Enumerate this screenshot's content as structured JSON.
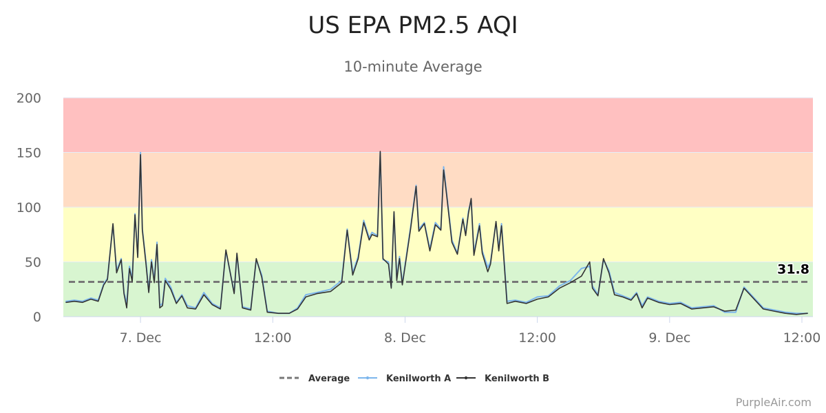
{
  "chart_data": {
    "type": "line",
    "title": "US EPA PM2.5 AQI",
    "subtitle": "10-minute Average",
    "ylim": [
      0,
      200
    ],
    "y_ticks": [
      "0",
      "50",
      "100",
      "150",
      "200"
    ],
    "x_ticks": [
      {
        "label": "7. Dec",
        "x": "2021-12-07T00:00"
      },
      {
        "label": "12:00",
        "x": "2021-12-07T12:00"
      },
      {
        "label": "8. Dec",
        "x": "2021-12-08T00:00"
      },
      {
        "label": "12:00",
        "x": "2021-12-08T12:00"
      },
      {
        "label": "9. Dec",
        "x": "2021-12-09T00:00"
      },
      {
        "label": "12:00",
        "x": "2021-12-09T12:00"
      }
    ],
    "xlim": [
      "2021-12-06T17:00",
      "2021-12-09T13:00"
    ],
    "bands": [
      {
        "from": 0,
        "to": 50,
        "color": "#d8f5d0"
      },
      {
        "from": 50,
        "to": 100,
        "color": "#ffffc4"
      },
      {
        "from": 100,
        "to": 150,
        "color": "#ffdcc4"
      },
      {
        "from": 150,
        "to": 200,
        "color": "#ffc0c0"
      }
    ],
    "average": {
      "name": "Average",
      "value": 31.8,
      "label": "31.8",
      "color": "#777777"
    },
    "legend_position": "bottom-center",
    "series": [
      {
        "name": "Kenilworth A",
        "color": "#7cb5ec",
        "points": [
          [
            "2021-12-06T17:15",
            14
          ],
          [
            "2021-12-06T18:00",
            15
          ],
          [
            "2021-12-06T18:45",
            14
          ],
          [
            "2021-12-06T19:30",
            17
          ],
          [
            "2021-12-06T20:10",
            15
          ],
          [
            "2021-12-06T20:40",
            30
          ],
          [
            "2021-12-06T21:00",
            35
          ],
          [
            "2021-12-06T21:30",
            84
          ],
          [
            "2021-12-06T21:50",
            42
          ],
          [
            "2021-12-06T22:15",
            53
          ],
          [
            "2021-12-06T22:30",
            22
          ],
          [
            "2021-12-06T22:45",
            12
          ],
          [
            "2021-12-06T23:00",
            46
          ],
          [
            "2021-12-06T23:15",
            34
          ],
          [
            "2021-12-06T23:30",
            94
          ],
          [
            "2021-12-06T23:45",
            55
          ],
          [
            "2021-12-07T00:00",
            150
          ],
          [
            "2021-12-07T00:10",
            80
          ],
          [
            "2021-12-07T00:30",
            50
          ],
          [
            "2021-12-07T00:45",
            23
          ],
          [
            "2021-12-07T01:00",
            52
          ],
          [
            "2021-12-07T01:15",
            33
          ],
          [
            "2021-12-07T01:30",
            68
          ],
          [
            "2021-12-07T01:45",
            10
          ],
          [
            "2021-12-07T02:00",
            12
          ],
          [
            "2021-12-07T02:15",
            35
          ],
          [
            "2021-12-07T02:45",
            27
          ],
          [
            "2021-12-07T03:15",
            13
          ],
          [
            "2021-12-07T03:45",
            20
          ],
          [
            "2021-12-07T04:15",
            10
          ],
          [
            "2021-12-07T05:00",
            8
          ],
          [
            "2021-12-07T05:45",
            22
          ],
          [
            "2021-12-07T06:30",
            12
          ],
          [
            "2021-12-07T07:15",
            8
          ],
          [
            "2021-12-07T07:45",
            60
          ],
          [
            "2021-12-07T08:30",
            22
          ],
          [
            "2021-12-07T08:45",
            57
          ],
          [
            "2021-12-07T09:15",
            9
          ],
          [
            "2021-12-07T10:00",
            7
          ],
          [
            "2021-12-07T10:30",
            52
          ],
          [
            "2021-12-07T11:00",
            38
          ],
          [
            "2021-12-07T11:30",
            5
          ],
          [
            "2021-12-07T12:30",
            3
          ],
          [
            "2021-12-07T13:30",
            3
          ],
          [
            "2021-12-07T14:15",
            8
          ],
          [
            "2021-12-07T15:00",
            20
          ],
          [
            "2021-12-07T16:00",
            22
          ],
          [
            "2021-12-07T17:15",
            25
          ],
          [
            "2021-12-07T18:15",
            33
          ],
          [
            "2021-12-07T18:45",
            80
          ],
          [
            "2021-12-07T19:15",
            40
          ],
          [
            "2021-12-07T19:45",
            55
          ],
          [
            "2021-12-07T20:15",
            88
          ],
          [
            "2021-12-07T20:45",
            72
          ],
          [
            "2021-12-07T21:00",
            77
          ],
          [
            "2021-12-07T21:30",
            74
          ],
          [
            "2021-12-07T21:45",
            150
          ],
          [
            "2021-12-07T22:00",
            52
          ],
          [
            "2021-12-07T22:30",
            50
          ],
          [
            "2021-12-07T22:45",
            27
          ],
          [
            "2021-12-07T23:00",
            95
          ],
          [
            "2021-12-07T23:15",
            35
          ],
          [
            "2021-12-07T23:30",
            55
          ],
          [
            "2021-12-07T23:45",
            30
          ],
          [
            "2021-12-08T00:30",
            82
          ],
          [
            "2021-12-08T01:00",
            120
          ],
          [
            "2021-12-08T01:15",
            80
          ],
          [
            "2021-12-08T01:45",
            86
          ],
          [
            "2021-12-08T02:15",
            62
          ],
          [
            "2021-12-08T02:45",
            86
          ],
          [
            "2021-12-08T03:15",
            80
          ],
          [
            "2021-12-08T03:30",
            137
          ],
          [
            "2021-12-08T03:45",
            115
          ],
          [
            "2021-12-08T04:15",
            70
          ],
          [
            "2021-12-08T04:45",
            58
          ],
          [
            "2021-12-08T05:15",
            90
          ],
          [
            "2021-12-08T05:30",
            75
          ],
          [
            "2021-12-08T05:45",
            96
          ],
          [
            "2021-12-08T06:00",
            107
          ],
          [
            "2021-12-08T06:15",
            58
          ],
          [
            "2021-12-08T06:45",
            85
          ],
          [
            "2021-12-08T07:00",
            60
          ],
          [
            "2021-12-08T07:30",
            45
          ],
          [
            "2021-12-08T07:45",
            50
          ],
          [
            "2021-12-08T08:15",
            86
          ],
          [
            "2021-12-08T08:30",
            62
          ],
          [
            "2021-12-08T08:45",
            85
          ],
          [
            "2021-12-08T09:15",
            14
          ],
          [
            "2021-12-08T10:00",
            15
          ],
          [
            "2021-12-08T11:00",
            13
          ],
          [
            "2021-12-08T12:00",
            18
          ],
          [
            "2021-12-08T13:00",
            19
          ],
          [
            "2021-12-08T14:00",
            28
          ],
          [
            "2021-12-08T15:00",
            33
          ],
          [
            "2021-12-08T16:00",
            44
          ],
          [
            "2021-12-08T16:45",
            46
          ],
          [
            "2021-12-08T17:00",
            28
          ],
          [
            "2021-12-08T17:30",
            20
          ],
          [
            "2021-12-08T18:00",
            52
          ],
          [
            "2021-12-08T18:30",
            42
          ],
          [
            "2021-12-08T19:00",
            22
          ],
          [
            "2021-12-08T19:45",
            19
          ],
          [
            "2021-12-08T20:30",
            16
          ],
          [
            "2021-12-08T21:00",
            22
          ],
          [
            "2021-12-08T21:30",
            10
          ],
          [
            "2021-12-08T22:00",
            18
          ],
          [
            "2021-12-08T23:00",
            14
          ],
          [
            "2021-12-09T00:00",
            12
          ],
          [
            "2021-12-09T01:00",
            13
          ],
          [
            "2021-12-09T02:00",
            8
          ],
          [
            "2021-12-09T03:00",
            9
          ],
          [
            "2021-12-09T04:00",
            10
          ],
          [
            "2021-12-09T05:00",
            4
          ],
          [
            "2021-12-09T06:00",
            4
          ],
          [
            "2021-12-09T06:45",
            27
          ],
          [
            "2021-12-09T08:30",
            8
          ],
          [
            "2021-12-09T09:30",
            6
          ],
          [
            "2021-12-09T10:30",
            4
          ],
          [
            "2021-12-09T11:30",
            3
          ],
          [
            "2021-12-09T12:30",
            3
          ]
        ]
      },
      {
        "name": "Kenilworth B",
        "color": "#333333",
        "points": [
          [
            "2021-12-06T17:15",
            13
          ],
          [
            "2021-12-06T18:00",
            14
          ],
          [
            "2021-12-06T18:45",
            13
          ],
          [
            "2021-12-06T19:30",
            16
          ],
          [
            "2021-12-06T20:10",
            14
          ],
          [
            "2021-12-06T20:40",
            29
          ],
          [
            "2021-12-06T21:00",
            34
          ],
          [
            "2021-12-06T21:30",
            85
          ],
          [
            "2021-12-06T21:50",
            40
          ],
          [
            "2021-12-06T22:15",
            52
          ],
          [
            "2021-12-06T22:30",
            21
          ],
          [
            "2021-12-06T22:45",
            8
          ],
          [
            "2021-12-06T23:00",
            44
          ],
          [
            "2021-12-06T23:15",
            32
          ],
          [
            "2021-12-06T23:30",
            93
          ],
          [
            "2021-12-06T23:45",
            54
          ],
          [
            "2021-12-07T00:00",
            148
          ],
          [
            "2021-12-07T00:10",
            79
          ],
          [
            "2021-12-07T00:30",
            48
          ],
          [
            "2021-12-07T00:45",
            22
          ],
          [
            "2021-12-07T01:00",
            50
          ],
          [
            "2021-12-07T01:15",
            31
          ],
          [
            "2021-12-07T01:30",
            66
          ],
          [
            "2021-12-07T01:45",
            8
          ],
          [
            "2021-12-07T02:00",
            10
          ],
          [
            "2021-12-07T02:15",
            33
          ],
          [
            "2021-12-07T02:45",
            25
          ],
          [
            "2021-12-07T03:15",
            12
          ],
          [
            "2021-12-07T03:45",
            19
          ],
          [
            "2021-12-07T04:15",
            8
          ],
          [
            "2021-12-07T05:00",
            7
          ],
          [
            "2021-12-07T05:45",
            20
          ],
          [
            "2021-12-07T06:30",
            11
          ],
          [
            "2021-12-07T07:15",
            7
          ],
          [
            "2021-12-07T07:45",
            61
          ],
          [
            "2021-12-07T08:30",
            21
          ],
          [
            "2021-12-07T08:45",
            58
          ],
          [
            "2021-12-07T09:15",
            8
          ],
          [
            "2021-12-07T10:00",
            6
          ],
          [
            "2021-12-07T10:30",
            53
          ],
          [
            "2021-12-07T11:00",
            36
          ],
          [
            "2021-12-07T11:30",
            4
          ],
          [
            "2021-12-07T12:30",
            3
          ],
          [
            "2021-12-07T13:30",
            3
          ],
          [
            "2021-12-07T14:15",
            7
          ],
          [
            "2021-12-07T15:00",
            18
          ],
          [
            "2021-12-07T16:00",
            21
          ],
          [
            "2021-12-07T17:15",
            23
          ],
          [
            "2021-12-07T18:15",
            31
          ],
          [
            "2021-12-07T18:45",
            79
          ],
          [
            "2021-12-07T19:15",
            38
          ],
          [
            "2021-12-07T19:45",
            53
          ],
          [
            "2021-12-07T20:15",
            86
          ],
          [
            "2021-12-07T20:45",
            70
          ],
          [
            "2021-12-07T21:00",
            75
          ],
          [
            "2021-12-07T21:30",
            73
          ],
          [
            "2021-12-07T21:45",
            151
          ],
          [
            "2021-12-07T22:00",
            53
          ],
          [
            "2021-12-07T22:30",
            48
          ],
          [
            "2021-12-07T22:45",
            26
          ],
          [
            "2021-12-07T23:00",
            96
          ],
          [
            "2021-12-07T23:15",
            33
          ],
          [
            "2021-12-07T23:30",
            53
          ],
          [
            "2021-12-07T23:45",
            29
          ],
          [
            "2021-12-08T00:30",
            80
          ],
          [
            "2021-12-08T01:00",
            119
          ],
          [
            "2021-12-08T01:15",
            78
          ],
          [
            "2021-12-08T01:45",
            85
          ],
          [
            "2021-12-08T02:15",
            60
          ],
          [
            "2021-12-08T02:45",
            84
          ],
          [
            "2021-12-08T03:15",
            79
          ],
          [
            "2021-12-08T03:30",
            134
          ],
          [
            "2021-12-08T03:45",
            113
          ],
          [
            "2021-12-08T04:15",
            68
          ],
          [
            "2021-12-08T04:45",
            57
          ],
          [
            "2021-12-08T05:15",
            89
          ],
          [
            "2021-12-08T05:30",
            74
          ],
          [
            "2021-12-08T05:45",
            94
          ],
          [
            "2021-12-08T06:00",
            108
          ],
          [
            "2021-12-08T06:15",
            56
          ],
          [
            "2021-12-08T06:45",
            83
          ],
          [
            "2021-12-08T07:00",
            58
          ],
          [
            "2021-12-08T07:30",
            41
          ],
          [
            "2021-12-08T07:45",
            48
          ],
          [
            "2021-12-08T08:15",
            87
          ],
          [
            "2021-12-08T08:30",
            60
          ],
          [
            "2021-12-08T08:45",
            83
          ],
          [
            "2021-12-08T09:15",
            12
          ],
          [
            "2021-12-08T10:00",
            14
          ],
          [
            "2021-12-08T11:00",
            12
          ],
          [
            "2021-12-08T12:00",
            16
          ],
          [
            "2021-12-08T13:00",
            18
          ],
          [
            "2021-12-08T14:00",
            26
          ],
          [
            "2021-12-08T15:00",
            31
          ],
          [
            "2021-12-08T16:00",
            37
          ],
          [
            "2021-12-08T16:45",
            50
          ],
          [
            "2021-12-08T17:00",
            26
          ],
          [
            "2021-12-08T17:30",
            19
          ],
          [
            "2021-12-08T18:00",
            53
          ],
          [
            "2021-12-08T18:30",
            40
          ],
          [
            "2021-12-08T19:00",
            20
          ],
          [
            "2021-12-08T19:45",
            18
          ],
          [
            "2021-12-08T20:30",
            15
          ],
          [
            "2021-12-08T21:00",
            21
          ],
          [
            "2021-12-08T21:30",
            8
          ],
          [
            "2021-12-08T22:00",
            17
          ],
          [
            "2021-12-08T23:00",
            13
          ],
          [
            "2021-12-09T00:00",
            11
          ],
          [
            "2021-12-09T01:00",
            12
          ],
          [
            "2021-12-09T02:00",
            7
          ],
          [
            "2021-12-09T03:00",
            8
          ],
          [
            "2021-12-09T04:00",
            9
          ],
          [
            "2021-12-09T05:00",
            5
          ],
          [
            "2021-12-09T06:00",
            6
          ],
          [
            "2021-12-09T06:45",
            26
          ],
          [
            "2021-12-09T08:30",
            7
          ],
          [
            "2021-12-09T09:30",
            5
          ],
          [
            "2021-12-09T10:30",
            3
          ],
          [
            "2021-12-09T11:30",
            2
          ],
          [
            "2021-12-09T12:30",
            3
          ]
        ]
      }
    ]
  },
  "credits": "PurpleAir.com"
}
